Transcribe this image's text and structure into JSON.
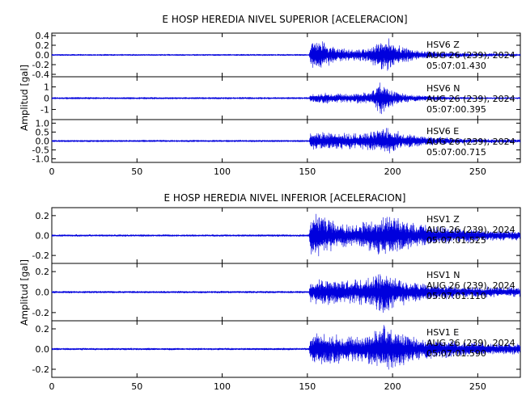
{
  "chart_data": [
    {
      "type": "line",
      "title": "E HOSP HEREDIA NIVEL SUPERIOR [ACELERACION]",
      "ylabel": "Amplitud [gal]",
      "xlabel": "",
      "xlim": [
        0,
        275
      ],
      "x_ticks": [
        0,
        50,
        100,
        150,
        200,
        250
      ],
      "line_color": "#0000dd",
      "series": [
        {
          "name": "HSV6 Z",
          "station": "HSV6",
          "component": "Z",
          "date_line": "AUG 26 (239), 2024",
          "time_line": "05:07:01.430",
          "ylim": [
            -0.45,
            0.45
          ],
          "y_ticks": [
            0.4,
            0.2,
            0.0,
            -0.2,
            -0.4
          ],
          "y_tick_labels": [
            "0.4",
            "0.2",
            "0.0",
            "-0.2",
            "-0.4"
          ],
          "noise_level": 0.02,
          "onset_s": 152,
          "envelope": [
            [
              0,
              0.02
            ],
            [
              151,
              0.02
            ],
            [
              152,
              0.25
            ],
            [
              155,
              0.38
            ],
            [
              165,
              0.2
            ],
            [
              175,
              0.12
            ],
            [
              185,
              0.15
            ],
            [
              192,
              0.3
            ],
            [
              196,
              0.4
            ],
            [
              205,
              0.2
            ],
            [
              215,
              0.1
            ],
            [
              240,
              0.05
            ],
            [
              275,
              0.03
            ]
          ]
        },
        {
          "name": "HSV6 N",
          "station": "HSV6",
          "component": "N",
          "date_line": "AUG 26 (239), 2024",
          "time_line": "05:07:00.395",
          "ylim": [
            -1.9,
            1.9
          ],
          "y_ticks": [
            1,
            0,
            -1
          ],
          "y_tick_labels": [
            "1",
            "0",
            "-1"
          ],
          "noise_level": 0.05,
          "onset_s": 152,
          "envelope": [
            [
              0,
              0.05
            ],
            [
              151,
              0.05
            ],
            [
              152,
              0.4
            ],
            [
              160,
              0.5
            ],
            [
              175,
              0.45
            ],
            [
              188,
              0.6
            ],
            [
              193,
              1.7
            ],
            [
              198,
              0.9
            ],
            [
              205,
              0.5
            ],
            [
              215,
              0.3
            ],
            [
              240,
              0.12
            ],
            [
              275,
              0.08
            ]
          ]
        },
        {
          "name": "HSV6 E",
          "station": "HSV6",
          "component": "E",
          "date_line": "AUG 26 (239), 2024",
          "time_line": "05:07:00.715",
          "ylim": [
            -1.2,
            1.2
          ],
          "y_ticks": [
            1.0,
            0.5,
            0.0,
            -0.5,
            -1.0
          ],
          "y_tick_labels": [
            "1.0",
            "0.5",
            "0.0",
            "-0.5",
            "-1.0"
          ],
          "noise_level": 0.03,
          "onset_s": 152,
          "envelope": [
            [
              0,
              0.03
            ],
            [
              151,
              0.03
            ],
            [
              152,
              0.5
            ],
            [
              160,
              0.55
            ],
            [
              170,
              0.5
            ],
            [
              180,
              0.45
            ],
            [
              190,
              0.6
            ],
            [
              196,
              0.9
            ],
            [
              205,
              0.5
            ],
            [
              215,
              0.35
            ],
            [
              240,
              0.15
            ],
            [
              275,
              0.1
            ]
          ]
        }
      ]
    },
    {
      "type": "line",
      "title": "E HOSP HEREDIA NIVEL INFERIOR [ACELERACION]",
      "ylabel": "Amplitud [gal]",
      "xlabel": "",
      "xlim": [
        0,
        275
      ],
      "x_ticks": [
        0,
        50,
        100,
        150,
        200,
        250
      ],
      "line_color": "#0000dd",
      "series": [
        {
          "name": "HSV1 Z",
          "station": "HSV1",
          "component": "Z",
          "date_line": "AUG 26 (239), 2024",
          "time_line": "05:07:01.525",
          "ylim": [
            -0.28,
            0.28
          ],
          "y_ticks": [
            0.2,
            0.0,
            -0.2
          ],
          "y_tick_labels": [
            "0.2",
            "0.0",
            "-0.2"
          ],
          "noise_level": 0.012,
          "onset_s": 152,
          "envelope": [
            [
              0,
              0.012
            ],
            [
              151,
              0.012
            ],
            [
              152,
              0.2
            ],
            [
              155,
              0.26
            ],
            [
              165,
              0.15
            ],
            [
              178,
              0.12
            ],
            [
              192,
              0.2
            ],
            [
              198,
              0.22
            ],
            [
              210,
              0.15
            ],
            [
              225,
              0.1
            ],
            [
              250,
              0.07
            ],
            [
              275,
              0.05
            ]
          ]
        },
        {
          "name": "HSV1 N",
          "station": "HSV1",
          "component": "N",
          "date_line": "AUG 26 (239), 2024",
          "time_line": "05:07:01.110",
          "ylim": [
            -0.28,
            0.28
          ],
          "y_ticks": [
            0.2,
            0.0,
            -0.2
          ],
          "y_tick_labels": [
            "0.2",
            "0.0",
            "-0.2"
          ],
          "noise_level": 0.012,
          "onset_s": 152,
          "envelope": [
            [
              0,
              0.012
            ],
            [
              151,
              0.012
            ],
            [
              152,
              0.12
            ],
            [
              160,
              0.14
            ],
            [
              175,
              0.12
            ],
            [
              188,
              0.15
            ],
            [
              196,
              0.25
            ],
            [
              202,
              0.15
            ],
            [
              215,
              0.1
            ],
            [
              240,
              0.06
            ],
            [
              275,
              0.05
            ]
          ]
        },
        {
          "name": "HSV1 E",
          "station": "HSV1",
          "component": "E",
          "date_line": "AUG 26 (239), 2024",
          "time_line": "05:07:01.590",
          "ylim": [
            -0.28,
            0.28
          ],
          "y_ticks": [
            0.2,
            0.0,
            -0.2
          ],
          "y_tick_labels": [
            "0.2",
            "0.0",
            "-0.2"
          ],
          "noise_level": 0.012,
          "onset_s": 152,
          "envelope": [
            [
              0,
              0.012
            ],
            [
              151,
              0.012
            ],
            [
              152,
              0.15
            ],
            [
              158,
              0.18
            ],
            [
              170,
              0.14
            ],
            [
              185,
              0.15
            ],
            [
              195,
              0.25
            ],
            [
              202,
              0.2
            ],
            [
              215,
              0.12
            ],
            [
              240,
              0.08
            ],
            [
              275,
              0.06
            ]
          ]
        }
      ]
    }
  ]
}
